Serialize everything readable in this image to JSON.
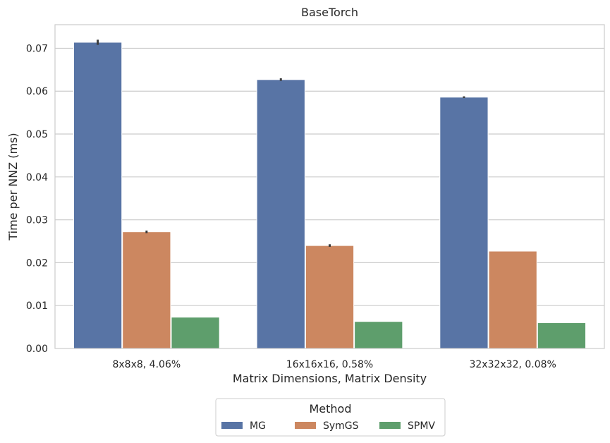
{
  "chart_data": {
    "type": "bar",
    "title": "BaseTorch",
    "xlabel": "Matrix Dimensions, Matrix Density",
    "ylabel": "Time per NNZ (ms)",
    "categories": [
      "8x8x8, 4.06%",
      "16x16x16, 0.58%",
      "32x32x32, 0.08%"
    ],
    "ylim": [
      0,
      0.0755
    ],
    "yticks": [
      0.0,
      0.01,
      0.02,
      0.03,
      0.04,
      0.05,
      0.06,
      0.07
    ],
    "ytick_labels": [
      "0.00",
      "0.01",
      "0.02",
      "0.03",
      "0.04",
      "0.05",
      "0.06",
      "0.07"
    ],
    "grid": "y",
    "series": [
      {
        "name": "MG",
        "color": "#5874a5",
        "values": [
          0.0714,
          0.0627,
          0.0586
        ],
        "error": [
          0.0006,
          0.0003,
          0.0002
        ]
      },
      {
        "name": "SymGS",
        "color": "#cc8760",
        "values": [
          0.0272,
          0.024,
          0.0227
        ],
        "error": [
          0.0003,
          0.0003,
          0.0
        ]
      },
      {
        "name": "SPMV",
        "color": "#5e9e6c",
        "values": [
          0.0073,
          0.0063,
          0.006
        ],
        "error": [
          0.0,
          0.0,
          0.0
        ]
      }
    ],
    "legend": {
      "title": "Method",
      "placement": "bottom-center"
    }
  }
}
